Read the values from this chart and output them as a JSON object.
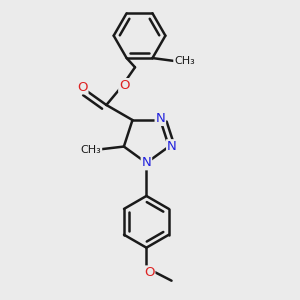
{
  "background_color": "#ebebeb",
  "bond_color": "#1a1a1a",
  "bond_width": 1.8,
  "dbo": 0.055,
  "atom_colors": {
    "N": "#2222dd",
    "O": "#dd2222",
    "C": "#1a1a1a"
  },
  "fs": 9.5,
  "figsize": [
    3.0,
    3.0
  ],
  "dpi": 100
}
